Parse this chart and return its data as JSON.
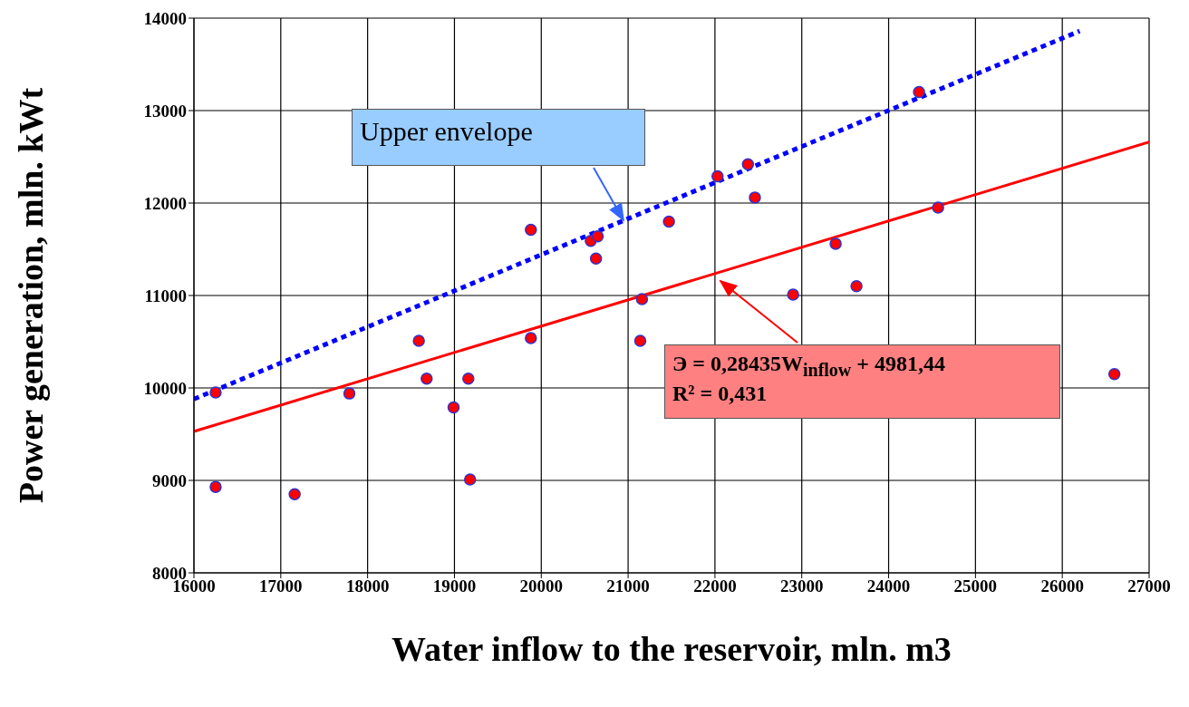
{
  "chart_data": {
    "type": "scatter",
    "xlabel": "Water inflow to the reservoir, mln. m3",
    "ylabel": "Power generation, mln. kWt",
    "xlim": [
      16000,
      27000
    ],
    "xticks": [
      16000,
      17000,
      18000,
      19000,
      20000,
      21000,
      22000,
      23000,
      24000,
      25000,
      26000,
      27000
    ],
    "ylim": [
      8000,
      14000
    ],
    "yticks": [
      8000,
      9000,
      10000,
      11000,
      12000,
      13000,
      14000
    ],
    "grid": true,
    "legend": false,
    "marker": "circle",
    "series": [
      {
        "color": "#ff0000",
        "x": [
          16250,
          16250,
          17160,
          17790,
          18590,
          18680,
          18990,
          19160,
          19180,
          19880,
          19880,
          20570,
          20650,
          20630,
          21140,
          21160,
          21470,
          22030,
          22380,
          22460,
          22900,
          23390,
          23630,
          24350,
          24570,
          26600
        ],
        "values": [
          9950,
          8930,
          8850,
          9940,
          10510,
          10100,
          9790,
          10100,
          9010,
          11710,
          10540,
          11590,
          11640,
          11400,
          10510,
          10960,
          11800,
          12290,
          12420,
          12060,
          11010,
          11560,
          11100,
          13200,
          11950,
          10150
        ]
      },
      {
        "type": "line",
        "color": "#ff0000",
        "line_style": "solid",
        "marker": "none",
        "x": [
          16000,
          27000
        ],
        "values": [
          9530,
          12660
        ]
      },
      {
        "type": "line",
        "color": "#0000ff",
        "line_style": "dotted",
        "marker": "none",
        "x": [
          16000,
          26200
        ],
        "values": [
          9880,
          13860
        ]
      }
    ],
    "annotations": [
      "Upper envelope",
      "Э = 0,28435W$_{inflow}$ + 4981,44\nR² = 0,431"
    ]
  }
}
